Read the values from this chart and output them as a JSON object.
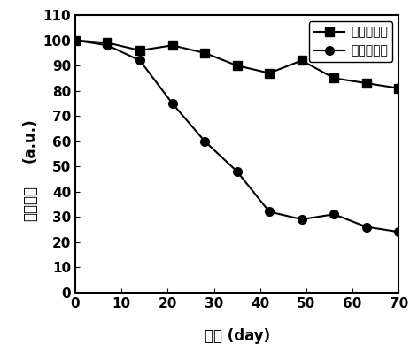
{
  "series1_label": "配体交换后",
  "series1_x": [
    0,
    7,
    14,
    21,
    28,
    35,
    42,
    49,
    56,
    63,
    70
  ],
  "series1_y": [
    100,
    99,
    96,
    98,
    95,
    90,
    87,
    92,
    85,
    83,
    81
  ],
  "series1_marker": "s",
  "series1_color": "#000000",
  "series2_label": "未配体交换",
  "series2_x": [
    0,
    7,
    14,
    21,
    28,
    35,
    42,
    49,
    56,
    63,
    70
  ],
  "series2_y": [
    100,
    98,
    92,
    75,
    60,
    48,
    32,
    29,
    31,
    26,
    24
  ],
  "series2_marker": "o",
  "series2_color": "#000000",
  "xlabel_cn": "时间",
  "xlabel_en": " (day)",
  "ylabel_line1": "(a.u.)",
  "ylabel_line2": "相对亮度",
  "xlim": [
    0,
    70
  ],
  "ylim": [
    0,
    110
  ],
  "xticks": [
    0,
    10,
    20,
    30,
    40,
    50,
    60,
    70
  ],
  "yticks": [
    0,
    10,
    20,
    30,
    40,
    50,
    60,
    70,
    80,
    90,
    100,
    110
  ],
  "linewidth": 1.5,
  "markersize": 7,
  "legend_loc": "upper right",
  "background_color": "#ffffff",
  "tick_fontsize": 11,
  "label_fontsize": 12
}
